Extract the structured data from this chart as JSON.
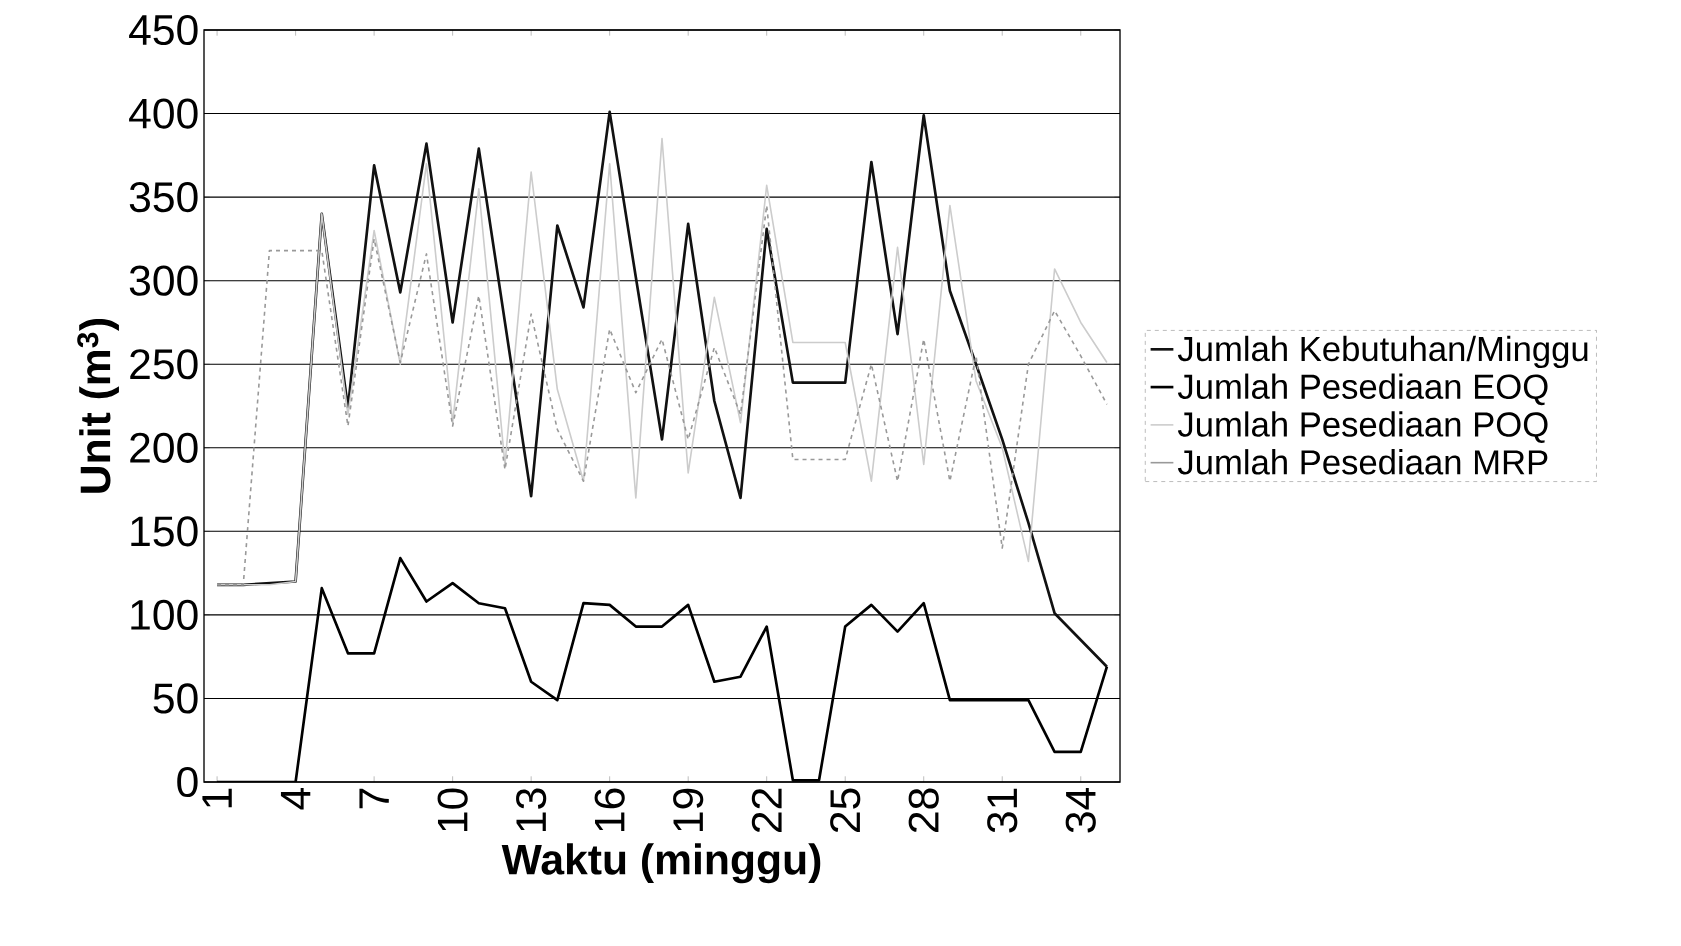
{
  "chart_data": {
    "type": "line",
    "xlabel": "Waktu (minggu)",
    "ylabel": "Unit (m$^{3}$)",
    "categories": [
      "1",
      null,
      null,
      "4",
      null,
      null,
      "7",
      null,
      null,
      "10",
      null,
      null,
      "13",
      null,
      null,
      "16",
      null,
      null,
      "19",
      null,
      null,
      "22",
      null,
      null,
      "25",
      null,
      null,
      "28",
      null,
      null,
      "31",
      null,
      null,
      "34",
      null
    ],
    "ylim": [
      0,
      450
    ],
    "yticks": [
      0,
      50,
      100,
      150,
      200,
      250,
      300,
      350,
      400,
      450
    ],
    "grid": "y",
    "legend": "right",
    "series": [
      {
        "name": "Jumlah Kebutuhan/Minggu",
        "color": "#111111",
        "values": [
          118,
          118,
          119,
          120,
          340,
          224,
          369,
          293,
          382,
          275,
          379,
          275,
          171,
          333,
          284,
          401,
          302,
          205,
          334,
          228,
          170,
          331,
          239,
          239,
          239,
          371,
          268,
          399,
          294,
          250,
          205,
          155,
          101,
          85,
          69
        ]
      },
      {
        "name": "Jumlah Pesediaan EOQ",
        "color": "#000000",
        "values": [
          0,
          0,
          0,
          0,
          116,
          77,
          77,
          134,
          108,
          119,
          107,
          104,
          60,
          49,
          107,
          106,
          93,
          93,
          106,
          60,
          63,
          93,
          1,
          1,
          93,
          106,
          90,
          107,
          49,
          49,
          49,
          49,
          18,
          18,
          69
        ]
      },
      {
        "name": "Jumlah Pesediaan POQ",
        "color": "#cccccc",
        "values": [
          118,
          118,
          118,
          120,
          340,
          220,
          330,
          250,
          370,
          215,
          355,
          190,
          365,
          235,
          180,
          370,
          170,
          385,
          185,
          290,
          215,
          357,
          263,
          263,
          263,
          180,
          320,
          190,
          345,
          240,
          200,
          132,
          307,
          275,
          251
        ]
      },
      {
        "name": "Jumlah Pesediaan MRP",
        "color": "#999999",
        "line_style": "dashed",
        "values": [
          118,
          118,
          318,
          318,
          318,
          213,
          325,
          251,
          316,
          213,
          291,
          187,
          280,
          211,
          180,
          271,
          233,
          265,
          205,
          260,
          220,
          345,
          193,
          193,
          193,
          250,
          180,
          265,
          180,
          255,
          140,
          250,
          282,
          255,
          226
        ]
      }
    ]
  }
}
